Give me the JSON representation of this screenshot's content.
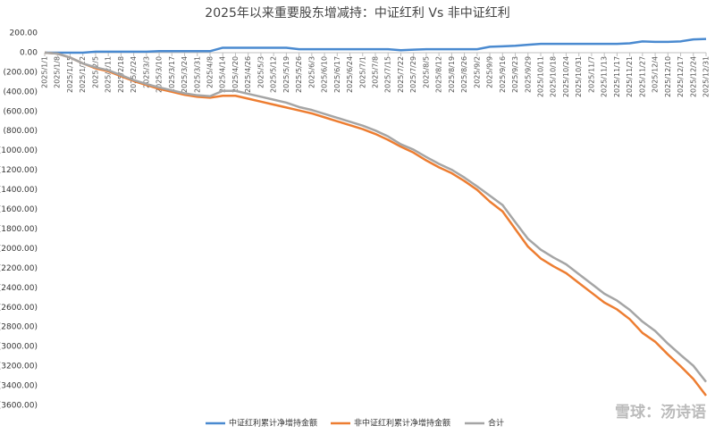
{
  "chart_data": {
    "type": "line",
    "title": "2025年以来重要股东增减持：中证红利 Vs 非中证红利",
    "watermark": "雪球：汤诗语",
    "categories": [
      "2025/1/1",
      "2025/1/8",
      "2025/1/15",
      "2025/1/22",
      "2025/2/5",
      "2025/2/11",
      "2025/2/18",
      "2025/2/24",
      "2025/3/3",
      "2025/3/10",
      "2025/3/17",
      "2025/3/24",
      "2025/3/31",
      "2025/4/8",
      "2025/4/14",
      "2025/4/20",
      "2025/4/26",
      "2025/5/3",
      "2025/5/12",
      "2025/5/19",
      "2025/5/26",
      "2025/6/3",
      "2025/6/10",
      "2025/6/17",
      "2025/6/24",
      "2025/7/1",
      "2025/7/8",
      "2025/7/15",
      "2025/7/22",
      "2025/7/29",
      "2025/8/5",
      "2025/8/12",
      "2025/8/19",
      "2025/8/26",
      "2025/9/2",
      "2025/9/9",
      "2025/9/16",
      "2025/9/23",
      "2025/9/29",
      "2025/10/11",
      "2025/10/18",
      "2025/10/24",
      "2025/10/31",
      "2025/11/7",
      "2025/11/13",
      "2025/11/17",
      "2025/11/21",
      "2025/11/27",
      "2025/12/4",
      "2025/12/10",
      "2025/12/17",
      "2025/12/24",
      "2025/12/31"
    ],
    "series": [
      {
        "name": "中证红利累计净增持金额",
        "color": "#4a8ad0",
        "values": [
          0,
          0,
          0,
          0,
          10,
          10,
          10,
          10,
          10,
          15,
          15,
          15,
          15,
          15,
          50,
          50,
          50,
          50,
          50,
          50,
          35,
          35,
          35,
          35,
          35,
          35,
          35,
          35,
          25,
          30,
          35,
          35,
          35,
          35,
          35,
          60,
          65,
          70,
          80,
          90,
          90,
          90,
          90,
          90,
          90,
          90,
          95,
          115,
          110,
          110,
          115,
          135,
          140
        ]
      },
      {
        "name": "非中证红利累计净增持金额",
        "color": "#ed7d31",
        "values": [
          0,
          -10,
          -50,
          -110,
          -160,
          -190,
          -240,
          -290,
          -330,
          -370,
          -400,
          -430,
          -450,
          -460,
          -440,
          -440,
          -470,
          -500,
          -530,
          -560,
          -590,
          -620,
          -660,
          -700,
          -740,
          -780,
          -830,
          -890,
          -960,
          -1020,
          -1100,
          -1170,
          -1230,
          -1310,
          -1400,
          -1520,
          -1620,
          -1800,
          -1980,
          -2100,
          -2180,
          -2250,
          -2350,
          -2450,
          -2550,
          -2620,
          -2720,
          -2860,
          -2950,
          -3080,
          -3200,
          -3330,
          -3500
        ]
      },
      {
        "name": "合计",
        "color": "#a5a5a5",
        "values": [
          0,
          -10,
          -50,
          -110,
          -150,
          -180,
          -230,
          -280,
          -320,
          -355,
          -385,
          -415,
          -435,
          -445,
          -390,
          -390,
          -420,
          -450,
          -480,
          -510,
          -555,
          -585,
          -625,
          -665,
          -705,
          -745,
          -795,
          -855,
          -935,
          -990,
          -1065,
          -1135,
          -1195,
          -1275,
          -1365,
          -1460,
          -1555,
          -1730,
          -1900,
          -2010,
          -2090,
          -2160,
          -2260,
          -2360,
          -2460,
          -2530,
          -2625,
          -2745,
          -2840,
          -2970,
          -3085,
          -3195,
          -3360
        ]
      }
    ],
    "ylim": [
      -3600,
      200
    ],
    "yticks": [
      {
        "value": 200,
        "label": "200.00"
      },
      {
        "value": 0,
        "label": "0.00"
      },
      {
        "value": -200,
        "label": "(200.00)"
      },
      {
        "value": -400,
        "label": "(400.00)"
      },
      {
        "value": -600,
        "label": "(600.00)"
      },
      {
        "value": -800,
        "label": "(800.00)"
      },
      {
        "value": -1000,
        "label": "(1000.00)"
      },
      {
        "value": -1200,
        "label": "(1200.00)"
      },
      {
        "value": -1400,
        "label": "(1400.00)"
      },
      {
        "value": -1600,
        "label": "(1600.00)"
      },
      {
        "value": -1800,
        "label": "(1800.00)"
      },
      {
        "value": -2000,
        "label": "(2000.00)"
      },
      {
        "value": -2200,
        "label": "(2200.00)"
      },
      {
        "value": -2400,
        "label": "(2400.00)"
      },
      {
        "value": -2600,
        "label": "(2600.00)"
      },
      {
        "value": -2800,
        "label": "(2800.00)"
      },
      {
        "value": -3000,
        "label": "(3000.00)"
      },
      {
        "value": -3200,
        "label": "(3200.00)"
      },
      {
        "value": -3400,
        "label": "(3400.00)"
      },
      {
        "value": -3600,
        "label": "(3600.00)"
      }
    ],
    "negative_tick_color": "#c00000",
    "legend": "bottom",
    "grid": false
  }
}
